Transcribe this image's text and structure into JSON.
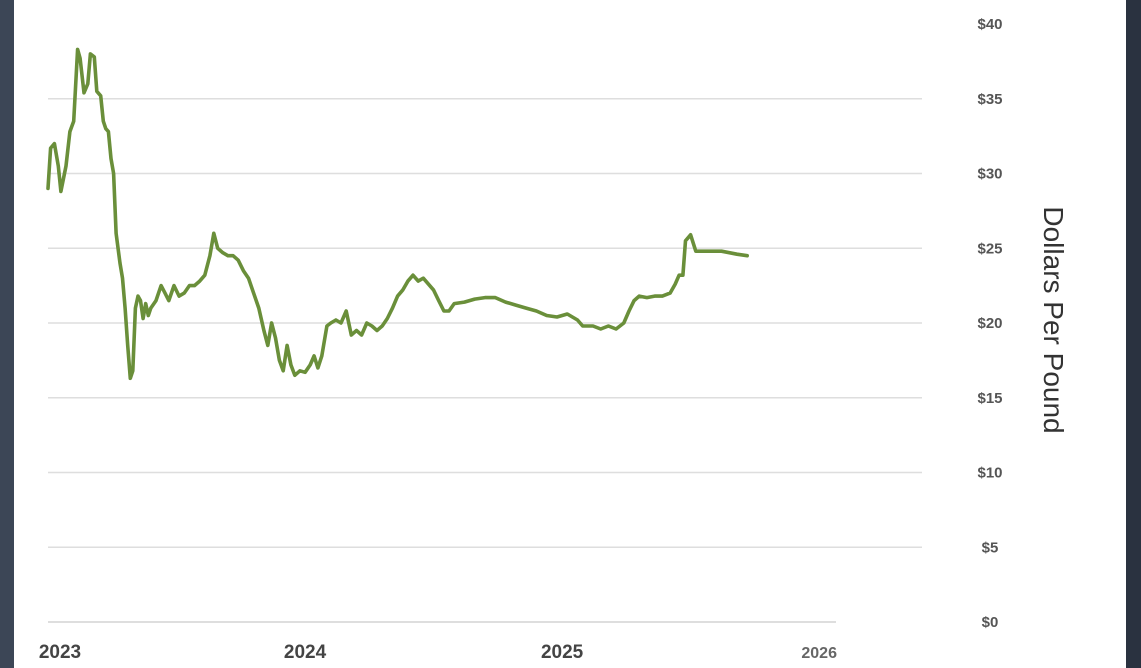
{
  "chart_data": {
    "type": "line",
    "title": "",
    "ylabel": "Dollars Per Pound",
    "ylim": [
      0,
      40
    ],
    "yticks": [
      0,
      5,
      10,
      15,
      20,
      25,
      30,
      35,
      40
    ],
    "ytick_labels": [
      "$0",
      "$5",
      "$10",
      "$15",
      "$20",
      "$25",
      "$30",
      "$35",
      "$40"
    ],
    "xlim": [
      2023.0,
      2026.4
    ],
    "xticks": [
      2023,
      2024,
      2025,
      2026
    ],
    "xtick_labels": [
      "2023",
      "2024",
      "2025",
      "2026"
    ],
    "y_axis_position": "right",
    "grid": true,
    "legend": "none",
    "series": [
      {
        "color": "#6a8f3a",
        "points": [
          [
            2023.0,
            29.0
          ],
          [
            2023.01,
            31.7
          ],
          [
            2023.025,
            32.0
          ],
          [
            2023.04,
            30.5
          ],
          [
            2023.05,
            28.8
          ],
          [
            2023.07,
            30.5
          ],
          [
            2023.085,
            32.8
          ],
          [
            2023.1,
            33.5
          ],
          [
            2023.115,
            38.3
          ],
          [
            2023.125,
            37.7
          ],
          [
            2023.14,
            35.4
          ],
          [
            2023.155,
            36.0
          ],
          [
            2023.165,
            38.0
          ],
          [
            2023.18,
            37.8
          ],
          [
            2023.19,
            35.5
          ],
          [
            2023.205,
            35.2
          ],
          [
            2023.215,
            33.5
          ],
          [
            2023.225,
            33.0
          ],
          [
            2023.235,
            32.8
          ],
          [
            2023.245,
            31.0
          ],
          [
            2023.255,
            30.0
          ],
          [
            2023.265,
            26.0
          ],
          [
            2023.28,
            24.0
          ],
          [
            2023.29,
            23.0
          ],
          [
            2023.3,
            21.0
          ],
          [
            2023.31,
            18.5
          ],
          [
            2023.32,
            16.3
          ],
          [
            2023.33,
            16.8
          ],
          [
            2023.34,
            21.0
          ],
          [
            2023.35,
            21.8
          ],
          [
            2023.36,
            21.5
          ],
          [
            2023.37,
            20.3
          ],
          [
            2023.38,
            21.3
          ],
          [
            2023.39,
            20.5
          ],
          [
            2023.4,
            21.0
          ],
          [
            2023.42,
            21.5
          ],
          [
            2023.44,
            22.5
          ],
          [
            2023.455,
            22.0
          ],
          [
            2023.47,
            21.5
          ],
          [
            2023.49,
            22.5
          ],
          [
            2023.51,
            21.8
          ],
          [
            2023.53,
            22.0
          ],
          [
            2023.55,
            22.5
          ],
          [
            2023.57,
            22.5
          ],
          [
            2023.59,
            22.8
          ],
          [
            2023.61,
            23.2
          ],
          [
            2023.63,
            24.5
          ],
          [
            2023.645,
            26.0
          ],
          [
            2023.66,
            25.0
          ],
          [
            2023.68,
            24.7
          ],
          [
            2023.7,
            24.5
          ],
          [
            2023.72,
            24.5
          ],
          [
            2023.74,
            24.2
          ],
          [
            2023.76,
            23.5
          ],
          [
            2023.78,
            23.0
          ],
          [
            2023.8,
            22.0
          ],
          [
            2023.82,
            21.0
          ],
          [
            2023.84,
            19.5
          ],
          [
            2023.855,
            18.5
          ],
          [
            2023.87,
            20.0
          ],
          [
            2023.885,
            19.0
          ],
          [
            2023.9,
            17.5
          ],
          [
            2023.915,
            16.8
          ],
          [
            2023.93,
            18.5
          ],
          [
            2023.945,
            17.2
          ],
          [
            2023.96,
            16.5
          ],
          [
            2023.98,
            16.8
          ],
          [
            2024.0,
            16.7
          ],
          [
            2024.02,
            17.2
          ],
          [
            2024.035,
            17.8
          ],
          [
            2024.05,
            17.0
          ],
          [
            2024.065,
            17.8
          ],
          [
            2024.085,
            19.8
          ],
          [
            2024.1,
            20.0
          ],
          [
            2024.12,
            20.2
          ],
          [
            2024.14,
            20.0
          ],
          [
            2024.16,
            20.8
          ],
          [
            2024.18,
            19.2
          ],
          [
            2024.2,
            19.5
          ],
          [
            2024.22,
            19.2
          ],
          [
            2024.24,
            20.0
          ],
          [
            2024.26,
            19.8
          ],
          [
            2024.28,
            19.5
          ],
          [
            2024.3,
            19.8
          ],
          [
            2024.32,
            20.3
          ],
          [
            2024.34,
            21.0
          ],
          [
            2024.36,
            21.8
          ],
          [
            2024.38,
            22.2
          ],
          [
            2024.4,
            22.8
          ],
          [
            2024.42,
            23.2
          ],
          [
            2024.44,
            22.8
          ],
          [
            2024.46,
            23.0
          ],
          [
            2024.48,
            22.6
          ],
          [
            2024.5,
            22.2
          ],
          [
            2024.52,
            21.5
          ],
          [
            2024.54,
            20.8
          ],
          [
            2024.56,
            20.8
          ],
          [
            2024.58,
            21.3
          ],
          [
            2024.62,
            21.4
          ],
          [
            2024.66,
            21.6
          ],
          [
            2024.7,
            21.7
          ],
          [
            2024.74,
            21.7
          ],
          [
            2024.78,
            21.4
          ],
          [
            2024.82,
            21.2
          ],
          [
            2024.86,
            21.0
          ],
          [
            2024.9,
            20.8
          ],
          [
            2024.94,
            20.5
          ],
          [
            2024.98,
            20.4
          ],
          [
            2025.02,
            20.6
          ],
          [
            2025.06,
            20.2
          ],
          [
            2025.08,
            19.8
          ],
          [
            2025.12,
            19.8
          ],
          [
            2025.15,
            19.6
          ],
          [
            2025.18,
            19.8
          ],
          [
            2025.21,
            19.6
          ],
          [
            2025.24,
            20.0
          ],
          [
            2025.26,
            20.8
          ],
          [
            2025.28,
            21.5
          ],
          [
            2025.3,
            21.8
          ],
          [
            2025.33,
            21.7
          ],
          [
            2025.36,
            21.8
          ],
          [
            2025.39,
            21.8
          ],
          [
            2025.42,
            22.0
          ],
          [
            2025.44,
            22.6
          ],
          [
            2025.455,
            23.2
          ],
          [
            2025.47,
            23.2
          ],
          [
            2025.48,
            25.5
          ],
          [
            2025.5,
            25.9
          ],
          [
            2025.52,
            24.8
          ],
          [
            2025.56,
            24.8
          ],
          [
            2025.62,
            24.8
          ],
          [
            2025.68,
            24.6
          ],
          [
            2025.72,
            24.5
          ]
        ]
      }
    ]
  }
}
